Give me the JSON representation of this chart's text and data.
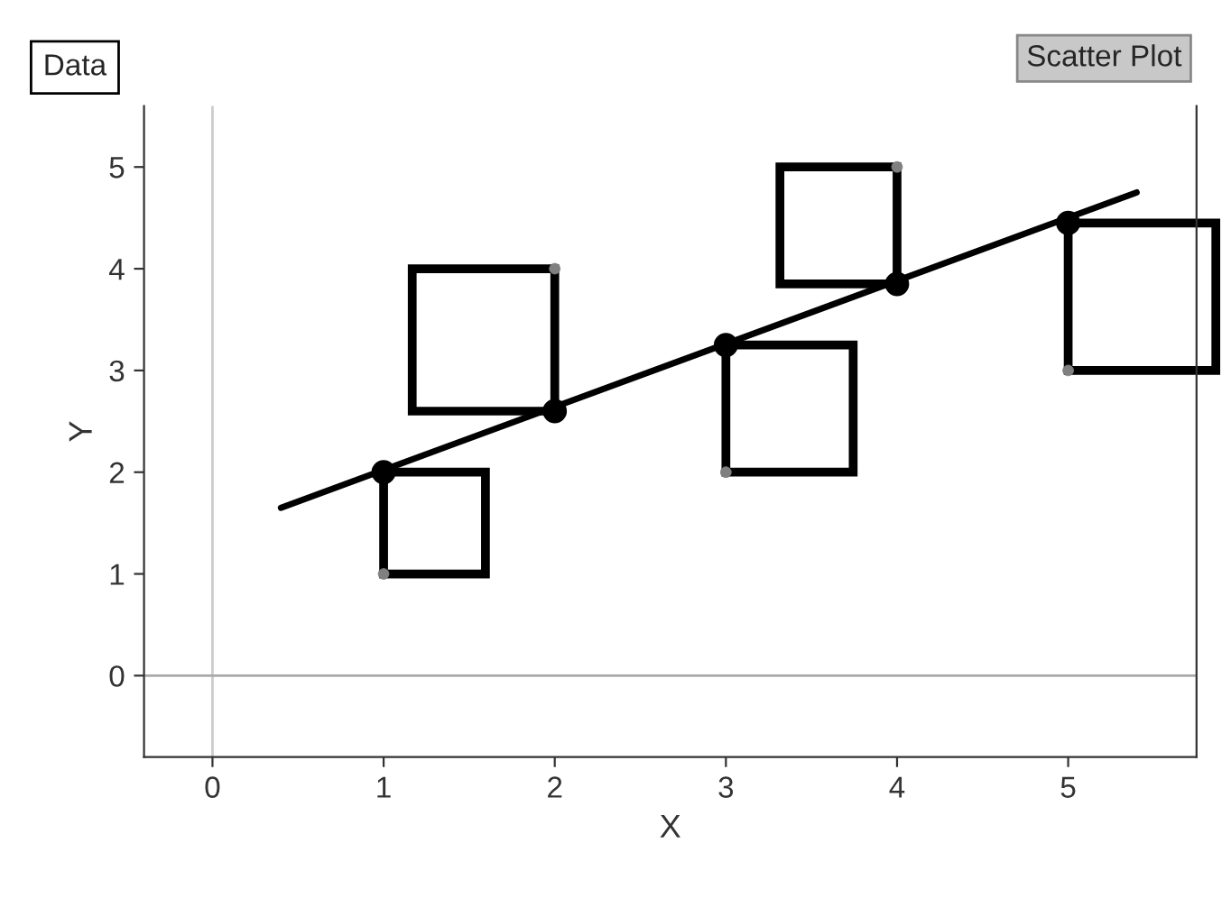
{
  "chart_data": {
    "type": "scatter",
    "xlabel": "X",
    "ylabel": "Y",
    "x": [
      1,
      2,
      3,
      4,
      5
    ],
    "series": [
      {
        "color": "#808080",
        "values": [
          1,
          4,
          2,
          5,
          3
        ],
        "marker": "circle"
      },
      {
        "type": "line",
        "color": "#000000",
        "x": [
          0.4,
          5.4
        ],
        "values": [
          1.65,
          4.75
        ],
        "marker": "none"
      },
      {
        "color": "#000000",
        "values": [
          2.0,
          2.6,
          3.25,
          3.85,
          4.45
        ],
        "marker": "circle"
      }
    ],
    "xlim": [
      -0.4,
      5.75
    ],
    "ylim": [
      -0.8,
      5.6
    ],
    "xticks": [
      0,
      1,
      2,
      3,
      4,
      5
    ],
    "yticks": [
      0,
      1,
      2,
      3,
      4,
      5
    ],
    "ref_lines": [
      {
        "axis": "x",
        "value": 0,
        "color": "#cccccc"
      },
      {
        "axis": "y",
        "value": 0,
        "color": "#aaaaaa"
      }
    ],
    "grid": false,
    "annotations": [
      "Data",
      "Scatter Plot"
    ]
  }
}
